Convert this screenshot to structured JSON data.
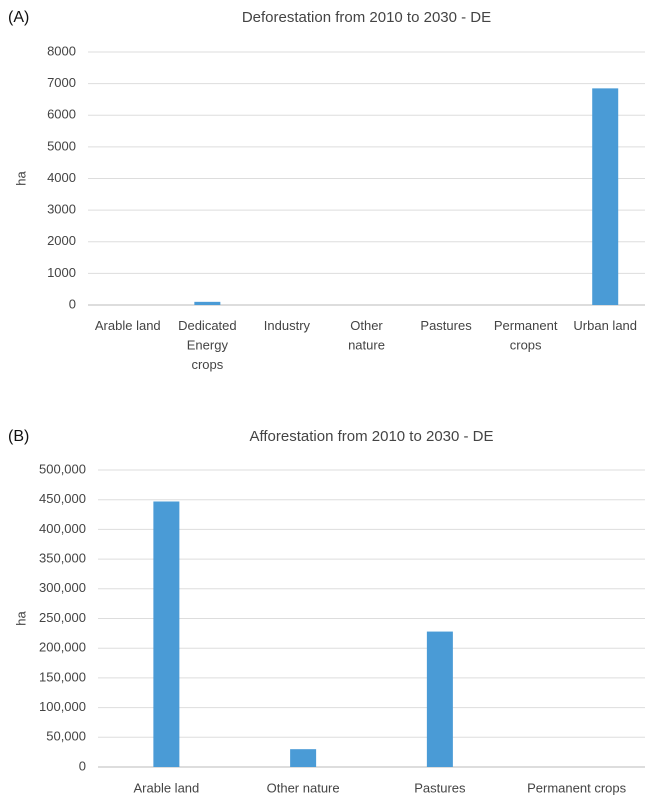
{
  "chart_data": [
    {
      "type": "bar",
      "panel_label": "(A)",
      "title": "Deforestation from 2010 to 2030 - DE",
      "y_label": "ha",
      "categories": [
        "Arable land",
        "Dedicated Energy crops",
        "Industry",
        "Other nature",
        "Pastures",
        "Permanent crops",
        "Urban land"
      ],
      "values": [
        0,
        100,
        0,
        0,
        0,
        0,
        6850
      ],
      "color": "#4a9bd6",
      "ylim": [
        0,
        8000
      ],
      "yticks": [
        0,
        1000,
        2000,
        3000,
        4000,
        5000,
        6000,
        7000,
        8000
      ],
      "grid": true
    },
    {
      "type": "bar",
      "panel_label": "(B)",
      "title": "Afforestation from 2010 to 2030 - DE",
      "y_label": "ha",
      "categories": [
        "Arable land",
        "Other nature",
        "Pastures",
        "Permanent crops"
      ],
      "values": [
        447000,
        30000,
        228000,
        0
      ],
      "color": "#4a9bd6",
      "ylim": [
        0,
        500000
      ],
      "yticks": [
        0,
        {
          "value": 50000,
          "label": "50,000"
        },
        {
          "value": 100000,
          "label": "100,000"
        },
        {
          "value": 150000,
          "label": "150,000"
        },
        {
          "value": 200000,
          "label": "200,000"
        },
        {
          "value": 250000,
          "label": "250,000"
        },
        {
          "value": 300000,
          "label": "300,000"
        },
        {
          "value": 350000,
          "label": "350,000"
        },
        {
          "value": 400000,
          "label": "400,000"
        },
        {
          "value": 450000,
          "label": "450,000"
        },
        {
          "value": 500000,
          "label": "500,000"
        }
      ],
      "grid": true
    }
  ]
}
